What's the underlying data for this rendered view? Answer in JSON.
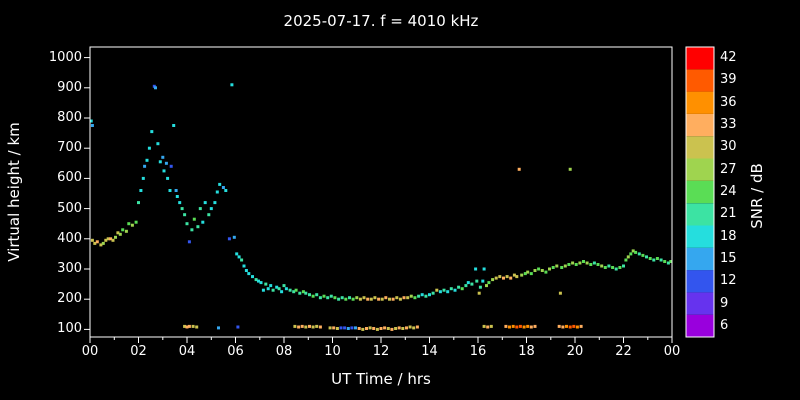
{
  "title": "2025-07-17. f = 4010 kHz",
  "colors": {
    "background": "#000000",
    "axis": "#ffffff",
    "text": "#ffffff"
  },
  "chart_data": {
    "type": "scatter",
    "title": "2025-07-17. f = 4010 kHz",
    "xlabel": "UT Time / hrs",
    "ylabel": "Virtual height / km",
    "xlim": [
      0,
      24
    ],
    "ylim": [
      75,
      1035
    ],
    "grid": false,
    "x_tick_values": [
      0,
      2,
      4,
      6,
      8,
      10,
      12,
      14,
      16,
      18,
      20,
      22,
      24
    ],
    "x_tick_labels": [
      "00",
      "02",
      "04",
      "06",
      "08",
      "10",
      "12",
      "14",
      "16",
      "18",
      "20",
      "22",
      "00"
    ],
    "y_tick_values": [
      100,
      200,
      300,
      400,
      500,
      600,
      700,
      800,
      900,
      1000
    ],
    "colorbar": {
      "label": "SNR / dB",
      "range": [
        4.5,
        43.5
      ],
      "ticks": [
        42,
        39,
        36,
        33,
        30,
        27,
        24,
        21,
        18,
        15,
        12,
        9,
        6
      ],
      "stops": {
        "6": "#9900dd",
        "9": "#6633ee",
        "12": "#3355ee",
        "15": "#35a7ef",
        "18": "#25dede",
        "21": "#3ce3a3",
        "24": "#5add55",
        "27": "#9fd44f",
        "30": "#cbc24f",
        "33": "#ffae5f",
        "36": "#ff9000",
        "39": "#ff5a00",
        "42": "#ff0000"
      }
    },
    "points": [
      [
        0.05,
        790,
        18
      ],
      [
        0.1,
        775,
        15
      ],
      [
        0.1,
        395,
        30
      ],
      [
        0.2,
        385,
        30
      ],
      [
        0.3,
        390,
        33
      ],
      [
        0.45,
        380,
        30
      ],
      [
        0.55,
        385,
        27
      ],
      [
        0.65,
        395,
        30
      ],
      [
        0.75,
        400,
        30
      ],
      [
        0.85,
        400,
        33
      ],
      [
        0.95,
        395,
        30
      ],
      [
        1.05,
        405,
        27
      ],
      [
        1.15,
        420,
        30
      ],
      [
        1.25,
        415,
        27
      ],
      [
        1.35,
        430,
        24
      ],
      [
        1.5,
        425,
        27
      ],
      [
        1.6,
        450,
        24
      ],
      [
        1.75,
        445,
        27
      ],
      [
        1.9,
        455,
        24
      ],
      [
        2.0,
        520,
        21
      ],
      [
        2.1,
        560,
        18
      ],
      [
        2.2,
        600,
        18
      ],
      [
        2.25,
        640,
        15
      ],
      [
        2.35,
        660,
        18
      ],
      [
        2.45,
        700,
        18
      ],
      [
        2.55,
        755,
        18
      ],
      [
        2.65,
        905,
        12
      ],
      [
        2.7,
        900,
        15
      ],
      [
        2.8,
        715,
        18
      ],
      [
        2.9,
        655,
        18
      ],
      [
        3.0,
        670,
        15
      ],
      [
        3.05,
        625,
        18
      ],
      [
        3.15,
        650,
        15
      ],
      [
        3.2,
        600,
        18
      ],
      [
        3.3,
        560,
        18
      ],
      [
        3.35,
        640,
        12
      ],
      [
        3.45,
        775,
        18
      ],
      [
        3.55,
        560,
        15
      ],
      [
        3.6,
        540,
        18
      ],
      [
        3.7,
        520,
        18
      ],
      [
        3.8,
        500,
        21
      ],
      [
        3.9,
        480,
        21
      ],
      [
        4.0,
        450,
        21
      ],
      [
        4.1,
        390,
        12
      ],
      [
        4.2,
        430,
        21
      ],
      [
        4.3,
        465,
        24
      ],
      [
        4.45,
        440,
        21
      ],
      [
        4.55,
        500,
        21
      ],
      [
        4.65,
        455,
        18
      ],
      [
        4.75,
        520,
        18
      ],
      [
        4.9,
        480,
        21
      ],
      [
        5.0,
        500,
        18
      ],
      [
        5.15,
        520,
        18
      ],
      [
        5.25,
        555,
        18
      ],
      [
        5.35,
        580,
        18
      ],
      [
        5.5,
        570,
        15
      ],
      [
        5.6,
        560,
        18
      ],
      [
        5.75,
        400,
        12
      ],
      [
        5.85,
        910,
        18
      ],
      [
        5.95,
        405,
        15
      ],
      [
        6.05,
        350,
        18
      ],
      [
        6.15,
        340,
        18
      ],
      [
        6.25,
        330,
        21
      ],
      [
        6.35,
        310,
        18
      ],
      [
        6.45,
        295,
        18
      ],
      [
        6.55,
        285,
        18
      ],
      [
        6.7,
        275,
        18
      ],
      [
        6.85,
        265,
        21
      ],
      [
        6.95,
        260,
        18
      ],
      [
        7.05,
        255,
        18
      ],
      [
        7.15,
        230,
        18
      ],
      [
        7.25,
        250,
        21
      ],
      [
        7.35,
        235,
        18
      ],
      [
        7.45,
        245,
        18
      ],
      [
        7.55,
        230,
        21
      ],
      [
        7.7,
        240,
        18
      ],
      [
        7.8,
        235,
        21
      ],
      [
        7.9,
        225,
        18
      ],
      [
        8.0,
        245,
        21
      ],
      [
        8.1,
        235,
        18
      ],
      [
        8.25,
        230,
        21
      ],
      [
        8.4,
        225,
        21
      ],
      [
        8.5,
        230,
        24
      ],
      [
        8.65,
        220,
        21
      ],
      [
        8.8,
        225,
        24
      ],
      [
        8.9,
        220,
        21
      ],
      [
        9.05,
        215,
        21
      ],
      [
        9.2,
        210,
        24
      ],
      [
        9.35,
        215,
        21
      ],
      [
        9.5,
        205,
        21
      ],
      [
        9.65,
        210,
        24
      ],
      [
        9.8,
        205,
        21
      ],
      [
        9.95,
        210,
        21
      ],
      [
        10.1,
        205,
        24
      ],
      [
        10.25,
        200,
        21
      ],
      [
        10.4,
        205,
        21
      ],
      [
        10.55,
        200,
        24
      ],
      [
        10.7,
        205,
        21
      ],
      [
        10.85,
        200,
        24
      ],
      [
        11.0,
        205,
        27
      ],
      [
        11.15,
        200,
        30
      ],
      [
        11.3,
        205,
        30
      ],
      [
        11.45,
        200,
        33
      ],
      [
        11.6,
        200,
        30
      ],
      [
        11.75,
        205,
        30
      ],
      [
        11.9,
        200,
        33
      ],
      [
        12.05,
        200,
        30
      ],
      [
        12.2,
        205,
        33
      ],
      [
        12.35,
        200,
        30
      ],
      [
        12.5,
        200,
        33
      ],
      [
        12.65,
        205,
        30
      ],
      [
        12.8,
        200,
        30
      ],
      [
        12.95,
        205,
        33
      ],
      [
        13.1,
        205,
        30
      ],
      [
        13.25,
        210,
        27
      ],
      [
        13.4,
        205,
        24
      ],
      [
        13.55,
        210,
        21
      ],
      [
        13.7,
        215,
        18
      ],
      [
        13.85,
        210,
        21
      ],
      [
        14.0,
        215,
        18
      ],
      [
        14.15,
        220,
        21
      ],
      [
        14.3,
        230,
        30
      ],
      [
        14.45,
        225,
        18
      ],
      [
        14.6,
        230,
        21
      ],
      [
        14.75,
        225,
        18
      ],
      [
        14.9,
        235,
        21
      ],
      [
        15.05,
        230,
        18
      ],
      [
        15.2,
        240,
        21
      ],
      [
        15.35,
        235,
        24
      ],
      [
        15.5,
        245,
        21
      ],
      [
        15.6,
        255,
        18
      ],
      [
        15.75,
        250,
        21
      ],
      [
        15.9,
        300,
        18
      ],
      [
        15.95,
        260,
        21
      ],
      [
        16.05,
        220,
        30
      ],
      [
        16.1,
        240,
        21
      ],
      [
        16.2,
        260,
        18
      ],
      [
        16.25,
        300,
        18
      ],
      [
        16.35,
        245,
        27
      ],
      [
        16.45,
        255,
        24
      ],
      [
        16.6,
        265,
        27
      ],
      [
        16.75,
        270,
        30
      ],
      [
        16.9,
        275,
        30
      ],
      [
        17.05,
        270,
        33
      ],
      [
        17.2,
        275,
        30
      ],
      [
        17.35,
        270,
        33
      ],
      [
        17.5,
        280,
        30
      ],
      [
        17.6,
        275,
        30
      ],
      [
        17.7,
        630,
        33
      ],
      [
        17.8,
        280,
        27
      ],
      [
        17.95,
        285,
        24
      ],
      [
        18.05,
        290,
        27
      ],
      [
        18.2,
        285,
        24
      ],
      [
        18.35,
        295,
        27
      ],
      [
        18.5,
        300,
        24
      ],
      [
        18.65,
        295,
        27
      ],
      [
        18.8,
        290,
        24
      ],
      [
        18.95,
        300,
        27
      ],
      [
        19.1,
        305,
        24
      ],
      [
        19.25,
        310,
        27
      ],
      [
        19.4,
        220,
        30
      ],
      [
        19.45,
        305,
        24
      ],
      [
        19.6,
        310,
        27
      ],
      [
        19.75,
        315,
        24
      ],
      [
        19.8,
        630,
        27
      ],
      [
        19.9,
        320,
        27
      ],
      [
        20.05,
        315,
        24
      ],
      [
        20.2,
        320,
        27
      ],
      [
        20.35,
        325,
        24
      ],
      [
        20.5,
        320,
        27
      ],
      [
        20.65,
        315,
        24
      ],
      [
        20.8,
        320,
        21
      ],
      [
        20.95,
        315,
        24
      ],
      [
        21.1,
        310,
        27
      ],
      [
        21.25,
        305,
        24
      ],
      [
        21.4,
        310,
        21
      ],
      [
        21.55,
        305,
        24
      ],
      [
        21.7,
        300,
        21
      ],
      [
        21.85,
        305,
        24
      ],
      [
        22.0,
        310,
        21
      ],
      [
        22.1,
        330,
        24
      ],
      [
        22.2,
        340,
        27
      ],
      [
        22.3,
        350,
        24
      ],
      [
        22.4,
        360,
        27
      ],
      [
        22.5,
        355,
        24
      ],
      [
        22.65,
        350,
        21
      ],
      [
        22.8,
        345,
        24
      ],
      [
        22.95,
        340,
        21
      ],
      [
        23.1,
        335,
        24
      ],
      [
        23.25,
        330,
        21
      ],
      [
        23.4,
        335,
        24
      ],
      [
        23.55,
        330,
        21
      ],
      [
        23.7,
        325,
        24
      ],
      [
        23.85,
        320,
        21
      ],
      [
        23.95,
        325,
        24
      ],
      [
        3.9,
        110,
        30
      ],
      [
        4.0,
        108,
        33
      ],
      [
        4.1,
        110,
        33
      ],
      [
        4.25,
        110,
        30
      ],
      [
        4.4,
        108,
        30
      ],
      [
        5.3,
        105,
        15
      ],
      [
        6.1,
        108,
        12
      ],
      [
        8.45,
        110,
        30
      ],
      [
        8.6,
        108,
        33
      ],
      [
        8.75,
        110,
        33
      ],
      [
        8.9,
        108,
        30
      ],
      [
        9.05,
        110,
        33
      ],
      [
        9.2,
        108,
        30
      ],
      [
        9.35,
        110,
        30
      ],
      [
        9.5,
        108,
        33
      ],
      [
        9.9,
        105,
        30
      ],
      [
        10.05,
        105,
        33
      ],
      [
        10.2,
        103,
        30
      ],
      [
        10.35,
        105,
        12
      ],
      [
        10.5,
        105,
        12
      ],
      [
        10.65,
        103,
        15
      ],
      [
        10.8,
        105,
        12
      ],
      [
        10.95,
        105,
        15
      ],
      [
        11.1,
        103,
        33
      ],
      [
        11.25,
        100,
        30
      ],
      [
        11.4,
        103,
        33
      ],
      [
        11.55,
        105,
        30
      ],
      [
        11.7,
        103,
        33
      ],
      [
        11.85,
        100,
        30
      ],
      [
        12.0,
        103,
        33
      ],
      [
        12.15,
        105,
        33
      ],
      [
        12.3,
        103,
        30
      ],
      [
        12.45,
        100,
        33
      ],
      [
        12.6,
        103,
        30
      ],
      [
        12.75,
        105,
        33
      ],
      [
        12.9,
        103,
        30
      ],
      [
        13.05,
        105,
        33
      ],
      [
        13.2,
        108,
        30
      ],
      [
        13.35,
        105,
        30
      ],
      [
        13.5,
        108,
        33
      ],
      [
        16.25,
        110,
        30
      ],
      [
        16.4,
        108,
        33
      ],
      [
        16.55,
        110,
        30
      ],
      [
        17.15,
        110,
        33
      ],
      [
        17.3,
        108,
        36
      ],
      [
        17.45,
        110,
        36
      ],
      [
        17.6,
        108,
        39
      ],
      [
        17.75,
        110,
        39
      ],
      [
        17.9,
        108,
        36
      ],
      [
        18.05,
        110,
        36
      ],
      [
        18.2,
        108,
        33
      ],
      [
        18.35,
        110,
        33
      ],
      [
        19.35,
        110,
        33
      ],
      [
        19.5,
        108,
        33
      ],
      [
        19.65,
        110,
        36
      ],
      [
        19.8,
        108,
        39
      ],
      [
        19.95,
        110,
        39
      ],
      [
        20.1,
        108,
        36
      ],
      [
        20.25,
        110,
        33
      ]
    ]
  }
}
